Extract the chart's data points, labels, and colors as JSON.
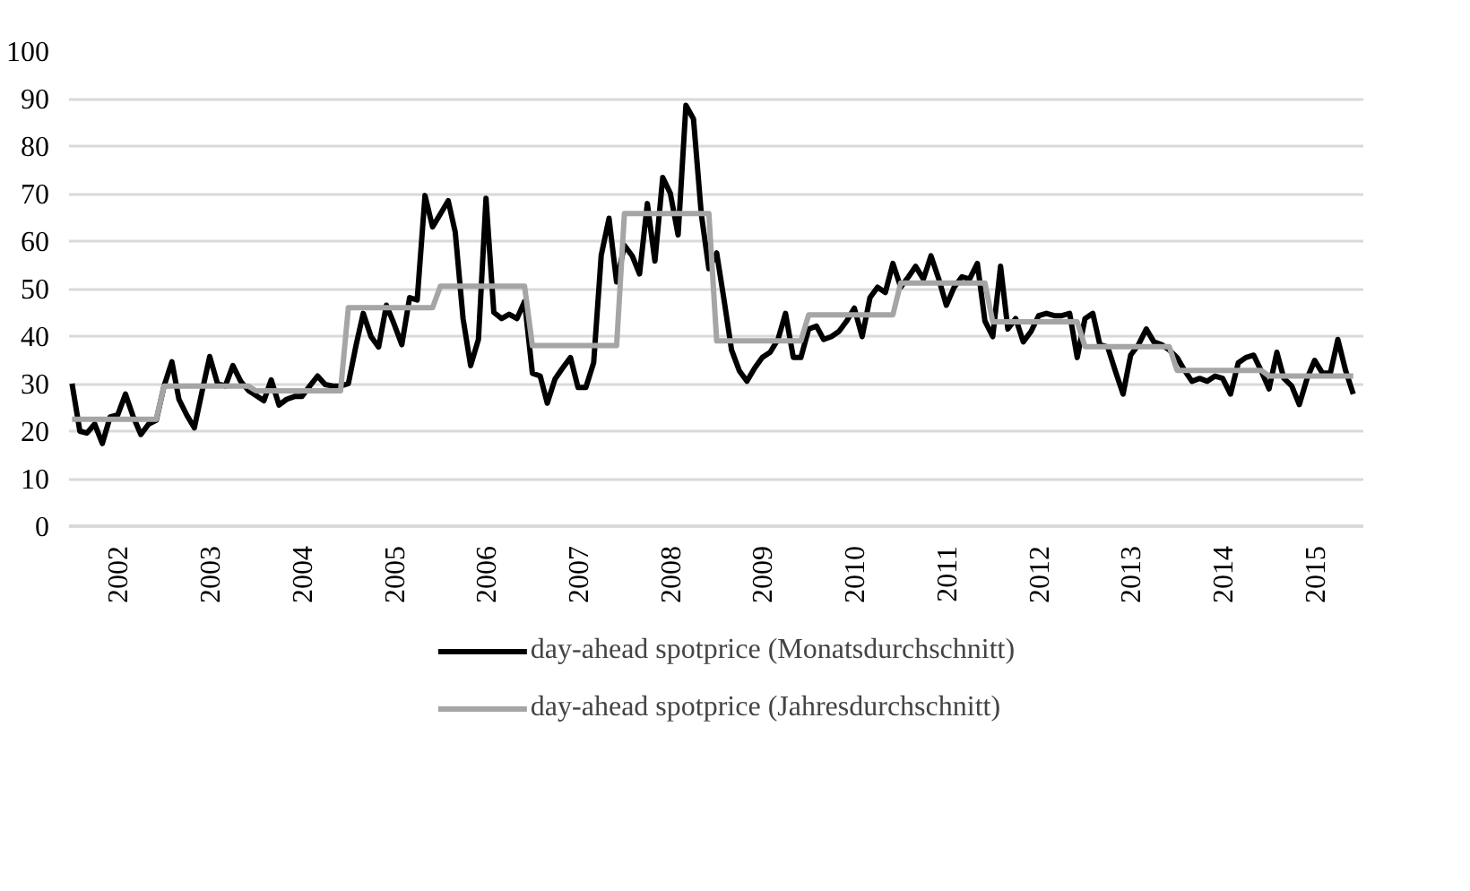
{
  "chart_data": {
    "type": "line",
    "x": [
      "2002-01",
      "2002-02",
      "2002-03",
      "2002-04",
      "2002-05",
      "2002-06",
      "2002-07",
      "2002-08",
      "2002-09",
      "2002-10",
      "2002-11",
      "2002-12",
      "2003-01",
      "2003-02",
      "2003-03",
      "2003-04",
      "2003-05",
      "2003-06",
      "2003-07",
      "2003-08",
      "2003-09",
      "2003-10",
      "2003-11",
      "2003-12",
      "2004-01",
      "2004-02",
      "2004-03",
      "2004-04",
      "2004-05",
      "2004-06",
      "2004-07",
      "2004-08",
      "2004-09",
      "2004-10",
      "2004-11",
      "2004-12",
      "2005-01",
      "2005-02",
      "2005-03",
      "2005-04",
      "2005-05",
      "2005-06",
      "2005-07",
      "2005-08",
      "2005-09",
      "2005-10",
      "2005-11",
      "2005-12",
      "2006-01",
      "2006-02",
      "2006-03",
      "2006-04",
      "2006-05",
      "2006-06",
      "2006-07",
      "2006-08",
      "2006-09",
      "2006-10",
      "2006-11",
      "2006-12",
      "2007-01",
      "2007-02",
      "2007-03",
      "2007-04",
      "2007-05",
      "2007-06",
      "2007-07",
      "2007-08",
      "2007-09",
      "2007-10",
      "2007-11",
      "2007-12",
      "2008-01",
      "2008-02",
      "2008-03",
      "2008-04",
      "2008-05",
      "2008-06",
      "2008-07",
      "2008-08",
      "2008-09",
      "2008-10",
      "2008-11",
      "2008-12",
      "2009-01",
      "2009-02",
      "2009-03",
      "2009-04",
      "2009-05",
      "2009-06",
      "2009-07",
      "2009-08",
      "2009-09",
      "2009-10",
      "2009-11",
      "2009-12",
      "2010-01",
      "2010-02",
      "2010-03",
      "2010-04",
      "2010-05",
      "2010-06",
      "2010-07",
      "2010-08",
      "2010-09",
      "2010-10",
      "2010-11",
      "2010-12",
      "2011-01",
      "2011-02",
      "2011-03",
      "2011-04",
      "2011-05",
      "2011-06",
      "2011-07",
      "2011-08",
      "2011-09",
      "2011-10",
      "2011-11",
      "2011-12",
      "2012-01",
      "2012-02",
      "2012-03",
      "2012-04",
      "2012-05",
      "2012-06",
      "2012-07",
      "2012-08",
      "2012-09",
      "2012-10",
      "2012-11",
      "2012-12",
      "2013-01",
      "2013-02",
      "2013-03",
      "2013-04",
      "2013-05",
      "2013-06",
      "2013-07",
      "2013-08",
      "2013-09",
      "2013-10",
      "2013-11",
      "2013-12",
      "2014-01",
      "2014-02",
      "2014-03",
      "2014-04",
      "2014-05",
      "2014-06",
      "2014-07",
      "2014-08",
      "2014-09",
      "2014-10",
      "2014-11",
      "2014-12",
      "2015-01",
      "2015-02",
      "2015-03",
      "2015-04",
      "2015-05",
      "2015-06",
      "2015-07",
      "2015-08",
      "2015-09",
      "2015-10",
      "2015-11",
      "2015-12"
    ],
    "series": [
      {
        "name": "day-ahead spotprice (Monatsdurchschnitt)",
        "color": "#000000",
        "values": [
          30,
          20,
          19.6,
          21.5,
          17.4,
          23,
          23.4,
          27.8,
          23,
          19.3,
          21.5,
          22.3,
          29.5,
          34.6,
          26.7,
          23.4,
          20.7,
          28.4,
          35.7,
          30,
          29.5,
          33.8,
          30.5,
          28.6,
          27.5,
          26.4,
          30.8,
          25.5,
          26.7,
          27.3,
          27.3,
          29.5,
          31.6,
          29.8,
          29.5,
          29.5,
          30,
          38.2,
          44.8,
          39.9,
          37.7,
          46.5,
          42.6,
          38.2,
          48.1,
          47.6,
          69.6,
          63,
          65.7,
          68.5,
          61.9,
          43.7,
          33.8,
          39.3,
          69,
          45,
          43.7,
          44.6,
          43.7,
          47.3,
          32.2,
          31.6,
          25.9,
          31,
          33.3,
          35.5,
          29.2,
          29.2,
          34.4,
          57,
          64.8,
          51.4,
          59.1,
          56.9,
          53.1,
          67.9,
          55.8,
          73.4,
          70.1,
          61.3,
          88.6,
          85.7,
          65.7,
          54.2,
          57.5,
          47,
          37.1,
          32.7,
          30.5,
          33.3,
          35.5,
          36.6,
          39.3,
          44.8,
          35.5,
          35.5,
          41.5,
          42.1,
          39.3,
          39.9,
          41,
          43.2,
          45.9,
          39.9,
          48.1,
          50.3,
          49.2,
          55.3,
          50.3,
          52.5,
          54.7,
          52,
          56.9,
          52,
          46.5,
          50.3,
          52.5,
          52,
          55.3,
          43.2,
          39.9,
          54.7,
          41.5,
          43.7,
          38.8,
          41,
          44.3,
          44.8,
          44.3,
          44.3,
          44.8,
          35.5,
          43.7,
          44.8,
          38.2,
          37.7,
          32.7,
          27.8,
          36,
          38.2,
          41.5,
          38.8,
          38.2,
          37.1,
          35.5,
          32.7,
          30.5,
          31.1,
          30.5,
          31.6,
          31.1,
          27.8,
          34.4,
          35.5,
          36,
          32.7,
          28.9,
          36.6,
          31.1,
          29.5,
          25.6,
          31.1,
          34.9,
          32.2,
          32.2,
          39.3,
          32.7,
          27.8
        ]
      },
      {
        "name": "day-ahead spotprice (Jahresdurchschnitt)",
        "color": "#a5a5a5",
        "x": [
          "2002-01",
          "2002-12",
          "2003-01",
          "2003-12",
          "2004-01",
          "2004-12",
          "2005-01",
          "2005-12",
          "2006-01",
          "2006-12",
          "2007-01",
          "2007-12",
          "2008-01",
          "2008-12",
          "2009-01",
          "2009-12",
          "2010-01",
          "2010-12",
          "2011-01",
          "2011-12",
          "2012-01",
          "2012-12",
          "2013-01",
          "2013-12",
          "2014-01",
          "2014-12",
          "2015-01",
          "2015-12"
        ],
        "values": [
          22.5,
          22.5,
          29.5,
          29.5,
          28.5,
          28.5,
          46,
          46,
          50.5,
          50.5,
          38,
          38,
          65.8,
          65.8,
          39,
          39,
          44.5,
          44.5,
          51.2,
          51.2,
          43,
          43,
          37.8,
          37.8,
          32.8,
          32.8,
          31.6,
          31.6
        ]
      }
    ],
    "xlim": [
      "2001-12-20",
      "2016-01-10"
    ],
    "xticks": [
      {
        "value": "2002-07",
        "label": "2002"
      },
      {
        "value": "2003-07",
        "label": "2003"
      },
      {
        "value": "2004-07",
        "label": "2004"
      },
      {
        "value": "2005-07",
        "label": "2005"
      },
      {
        "value": "2006-07",
        "label": "2006"
      },
      {
        "value": "2007-07",
        "label": "2007"
      },
      {
        "value": "2008-07",
        "label": "2008"
      },
      {
        "value": "2009-07",
        "label": "2009"
      },
      {
        "value": "2010-07",
        "label": "2010"
      },
      {
        "value": "2011-07",
        "label": "2011"
      },
      {
        "value": "2012-07",
        "label": "2012"
      },
      {
        "value": "2013-07",
        "label": "2013"
      },
      {
        "value": "2014-07",
        "label": "2014"
      },
      {
        "value": "2015-07",
        "label": "2015"
      }
    ],
    "ylim": [
      0,
      100
    ],
    "yticks": [
      0,
      10,
      20,
      30,
      40,
      50,
      60,
      70,
      80,
      90,
      100
    ],
    "grid": "y",
    "legend": "bottom",
    "marker": "none",
    "line_style": "solid"
  }
}
